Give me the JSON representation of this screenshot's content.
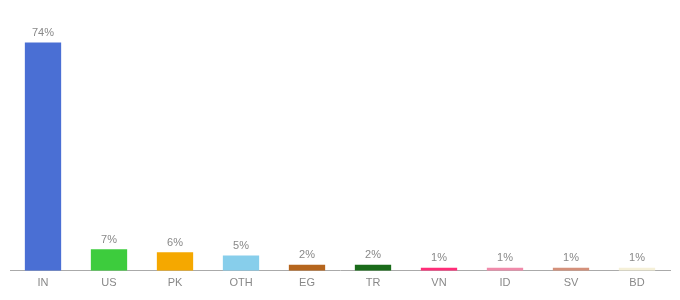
{
  "chart_data": {
    "type": "bar",
    "categories": [
      "IN",
      "US",
      "PK",
      "OTH",
      "EG",
      "TR",
      "VN",
      "ID",
      "SV",
      "BD"
    ],
    "values": [
      74,
      7,
      6,
      5,
      2,
      2,
      1,
      1,
      1,
      1
    ],
    "value_labels": [
      "74%",
      "7%",
      "6%",
      "5%",
      "2%",
      "2%",
      "1%",
      "1%",
      "1%",
      "1%"
    ],
    "colors": [
      "#4a6fd4",
      "#3dcc3d",
      "#f5a800",
      "#87ceeb",
      "#b5651d",
      "#1a6b1a",
      "#ff2d78",
      "#f08aaa",
      "#d4907a",
      "#f5f0d8"
    ],
    "ylim": [
      0,
      80
    ],
    "data_labels": true,
    "tick_labels": "x",
    "grid": false
  }
}
